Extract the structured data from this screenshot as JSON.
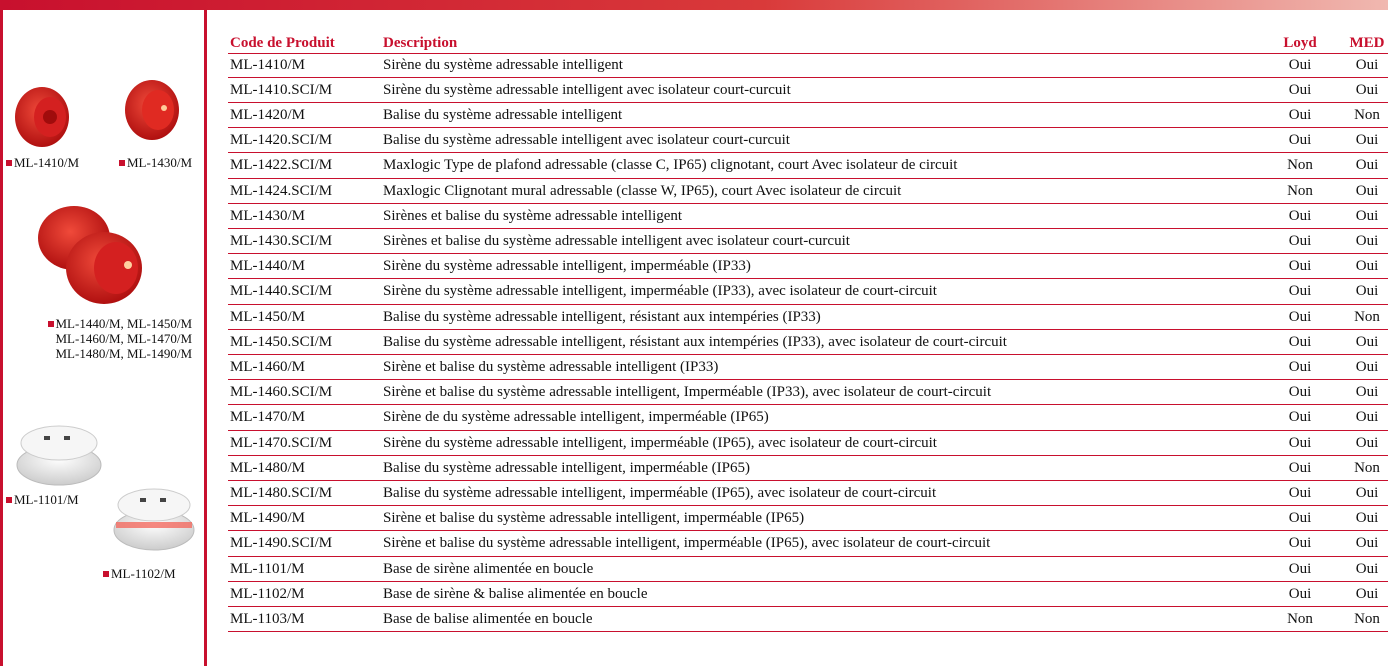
{
  "sidebar": {
    "captions": [
      "ML-1410/M",
      "ML-1430/M",
      "ML-1440/M, ML-1450/M",
      "ML-1460/M, ML-1470/M",
      "ML-1480/M, ML-1490/M",
      "ML-1101/M",
      "ML-1102/M"
    ]
  },
  "table": {
    "header": [
      "Code de Produit",
      "Description",
      "Loyd",
      "MED"
    ],
    "rows": [
      [
        "ML-1410/M",
        "Sirène du système adressable intelligent",
        "Oui",
        "Oui"
      ],
      [
        "ML-1410.SCI/M",
        "Sirène du système adressable intelligent avec isolateur court-curcuit",
        "Oui",
        "Oui"
      ],
      [
        "ML-1420/M",
        "Balise du système adressable intelligent",
        "Oui",
        "Non"
      ],
      [
        "ML-1420.SCI/M",
        "Balise du système adressable intelligent avec isolateur court-curcuit",
        "Oui",
        "Oui"
      ],
      [
        "ML-1422.SCI/M",
        "Maxlogic Type de plafond adressable (classe C, IP65) clignotant, court Avec isolateur de circuit",
        "Non",
        "Oui"
      ],
      [
        "ML-1424.SCI/M",
        "Maxlogic Clignotant mural adressable (classe W, IP65), court Avec isolateur de circuit",
        "Non",
        "Oui"
      ],
      [
        "ML-1430/M",
        "Sirènes et balise du système adressable intelligent",
        "Oui",
        "Oui"
      ],
      [
        "ML-1430.SCI/M",
        "Sirènes et balise du système adressable intelligent avec isolateur court-curcuit",
        "Oui",
        "Oui"
      ],
      [
        "ML-1440/M",
        "Sirène du système adressable intelligent, imperméable (IP33)",
        "Oui",
        "Oui"
      ],
      [
        "ML-1440.SCI/M",
        "Sirène du système adressable intelligent, imperméable (IP33), avec isolateur de court-circuit",
        "Oui",
        "Oui"
      ],
      [
        "ML-1450/M",
        "Balise du système adressable intelligent, résistant aux intempéries (IP33)",
        "Oui",
        "Non"
      ],
      [
        "ML-1450.SCI/M",
        "Balise du système adressable intelligent, résistant aux intempéries (IP33), avec isolateur de court-circuit",
        "Oui",
        "Oui"
      ],
      [
        "ML-1460/M",
        "Sirène et balise du système adressable intelligent (IP33)",
        "Oui",
        "Oui"
      ],
      [
        "ML-1460.SCI/M",
        "Sirène et balise du système adressable intelligent, Imperméable (IP33), avec isolateur de court-circuit",
        "Oui",
        "Oui"
      ],
      [
        "ML-1470/M",
        "Sirène de du système adressable intelligent, imperméable (IP65)",
        "Oui",
        "Oui"
      ],
      [
        "ML-1470.SCI/M",
        "Sirène du système adressable intelligent, imperméable (IP65), avec isolateur de court-circuit",
        "Oui",
        "Oui"
      ],
      [
        "ML-1480/M",
        "Balise du système adressable intelligent, imperméable (IP65)",
        "Oui",
        "Non"
      ],
      [
        "ML-1480.SCI/M",
        "Balise du système adressable intelligent, imperméable (IP65), avec isolateur de court-circuit",
        "Oui",
        "Oui"
      ],
      [
        "ML-1490/M",
        "Sirène et balise du système adressable intelligent, imperméable (IP65)",
        "Oui",
        "Oui"
      ],
      [
        "ML-1490.SCI/M",
        "Sirène et balise du système adressable intelligent, imperméable (IP65), avec isolateur de court-circuit",
        "Oui",
        "Oui"
      ],
      [
        "ML-1101/M",
        "Base de sirène alimentée en boucle",
        "Oui",
        "Oui"
      ],
      [
        "ML-1102/M",
        "Base de sirène & balise alimentée en boucle",
        "Oui",
        "Oui"
      ],
      [
        "ML-1103/M",
        "Base de balise alimentée en boucle",
        "Non",
        "Non"
      ]
    ]
  }
}
